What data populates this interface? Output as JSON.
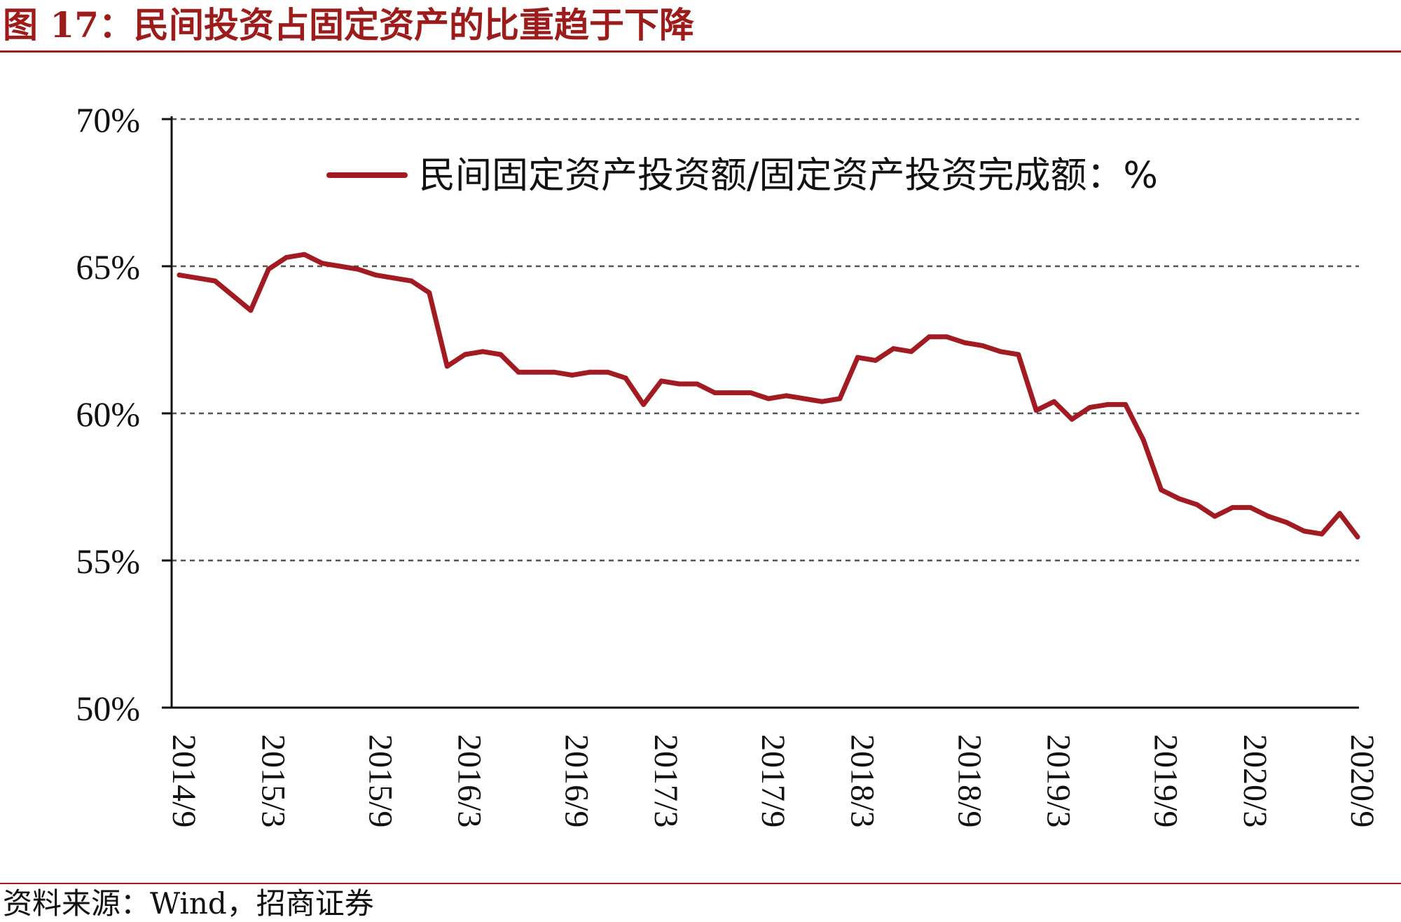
{
  "figure": {
    "title": "图 17：民间投资占固定资产的比重趋于下降",
    "source": "资料来源：Wind，招商证券"
  },
  "colors": {
    "accent": "#9c1c1c",
    "line": "#a31b22",
    "grid": "#555555",
    "axis": "#111111"
  },
  "chart_data": {
    "type": "line",
    "title": "",
    "xlabel": "",
    "ylabel": "",
    "y_unit": "%",
    "ylim": [
      50,
      70
    ],
    "y_ticks": [
      50,
      55,
      60,
      65,
      70
    ],
    "y_tick_labels": [
      "50%",
      "55%",
      "60%",
      "65%",
      "70%"
    ],
    "grid": "horizontal dashed",
    "legend": {
      "position": "top-center"
    },
    "x_tick_labels": [
      "2014/9",
      "2015/3",
      "2015/9",
      "2016/3",
      "2016/9",
      "2017/3",
      "2017/9",
      "2018/3",
      "2018/9",
      "2019/3",
      "2019/9",
      "2020/3",
      "2020/9"
    ],
    "series": [
      {
        "name": "民间固定资产投资额/固定资产投资完成额：%",
        "color": "#a31b22",
        "x": [
          "2014/9",
          "2014/10",
          "2014/11",
          "2014/12",
          "2015/2",
          "2015/3",
          "2015/4",
          "2015/5",
          "2015/6",
          "2015/7",
          "2015/8",
          "2015/9",
          "2015/10",
          "2015/11",
          "2015/12",
          "2016/2",
          "2016/3",
          "2016/4",
          "2016/5",
          "2016/6",
          "2016/7",
          "2016/8",
          "2016/9",
          "2016/10",
          "2016/11",
          "2016/12",
          "2017/2",
          "2017/3",
          "2017/4",
          "2017/5",
          "2017/6",
          "2017/7",
          "2017/8",
          "2017/9",
          "2017/10",
          "2017/11",
          "2017/12",
          "2018/2",
          "2018/3",
          "2018/4",
          "2018/5",
          "2018/6",
          "2018/7",
          "2018/8",
          "2018/9",
          "2018/10",
          "2018/11",
          "2018/12",
          "2019/2",
          "2019/3",
          "2019/4",
          "2019/5",
          "2019/6",
          "2019/7",
          "2019/8",
          "2019/9",
          "2019/10",
          "2019/11",
          "2019/12",
          "2020/2",
          "2020/3",
          "2020/4",
          "2020/5",
          "2020/6",
          "2020/7",
          "2020/8",
          "2020/9"
        ],
        "values": [
          64.7,
          64.6,
          64.5,
          64.0,
          63.5,
          64.9,
          65.3,
          65.4,
          65.1,
          65.0,
          64.9,
          64.7,
          64.6,
          64.5,
          64.1,
          61.6,
          62.0,
          62.1,
          62.0,
          61.4,
          61.4,
          61.4,
          61.3,
          61.4,
          61.4,
          61.2,
          60.3,
          61.1,
          61.0,
          61.0,
          60.7,
          60.7,
          60.7,
          60.5,
          60.6,
          60.5,
          60.4,
          60.5,
          61.9,
          61.8,
          62.2,
          62.1,
          62.6,
          62.6,
          62.4,
          62.3,
          62.1,
          62.0,
          60.1,
          60.4,
          59.8,
          60.2,
          60.3,
          60.3,
          59.1,
          57.4,
          57.1,
          56.9,
          56.5,
          56.8,
          56.8,
          56.5,
          56.3,
          56.0,
          55.9,
          56.6,
          55.8
        ]
      }
    ]
  }
}
